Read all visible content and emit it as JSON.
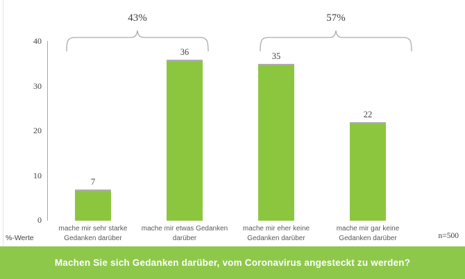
{
  "chart_data": {
    "type": "bar",
    "title": "",
    "categories": [
      "mache mir sehr starke Gedanken darüber",
      "mache mir etwas Gedanken darüber",
      "mache mir eher keine Gedanken darüber",
      "mache mir gar keine Gedanken darüber"
    ],
    "category_lines": [
      [
        "mache mir sehr starke",
        "Gedanken darüber"
      ],
      [
        "mache mir etwas Gedanken",
        "darüber"
      ],
      [
        "mache mir eher keine",
        "Gedanken darüber"
      ],
      [
        "mache mir gar keine",
        "Gedanken darüber"
      ]
    ],
    "values": [
      7,
      36,
      35,
      22
    ],
    "value_labels": [
      "7",
      "36",
      "35",
      "22"
    ],
    "ylim": [
      0,
      40
    ],
    "yticks": [
      0,
      10,
      20,
      30,
      40
    ],
    "grid": false,
    "legend": "none",
    "groups": [
      {
        "label": "43%",
        "from": 0,
        "to": 1
      },
      {
        "label": "57%",
        "from": 2,
        "to": 3
      }
    ],
    "axis_note": "%-Werte",
    "sample_size": "n=500",
    "question": "Machen Sie sich Gedanken darüber, vom Coronavirus angesteckt zu werden?"
  },
  "colors": {
    "bar_green": "#8cc63f",
    "banner_green": "#8ec84a",
    "axis_grey": "#a6a6a6",
    "bracket_grey": "#ababab",
    "text_dark": "#404040"
  }
}
